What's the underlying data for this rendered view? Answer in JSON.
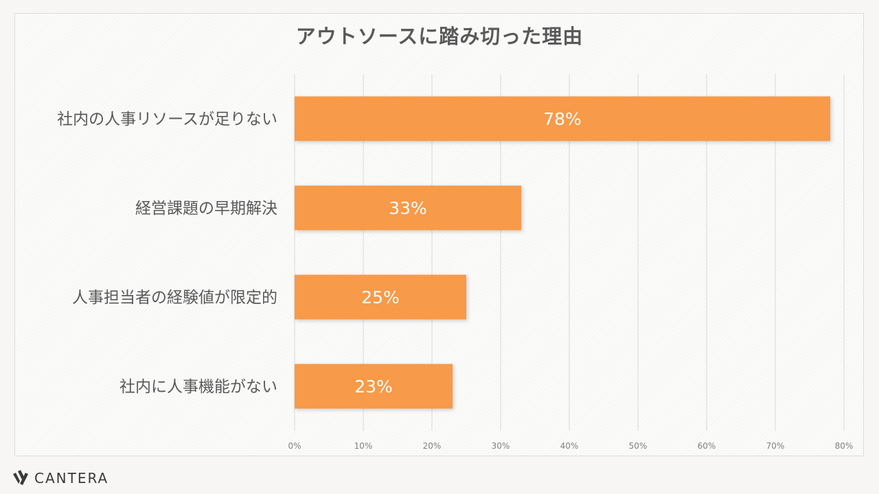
{
  "chart_data": {
    "type": "bar",
    "orientation": "horizontal",
    "title": "アウトソースに踏み切った理由",
    "categories": [
      "社内の人事リソースが足りない",
      "経営課題の早期解決",
      "人事担当者の経験値が限定的",
      "社内に人事機能がない"
    ],
    "values": [
      78,
      33,
      25,
      23
    ],
    "data_labels": [
      "78%",
      "33%",
      "25%",
      "23%"
    ],
    "xlim": [
      0,
      80
    ],
    "x_ticks": [
      0,
      10,
      20,
      30,
      40,
      50,
      60,
      70,
      80
    ],
    "x_tick_labels": [
      "0%",
      "10%",
      "20%",
      "30%",
      "40%",
      "50%",
      "60%",
      "70%",
      "80%"
    ],
    "grid": true,
    "bar_color": "#f79a49"
  },
  "brand": {
    "name": "CANTERA"
  }
}
